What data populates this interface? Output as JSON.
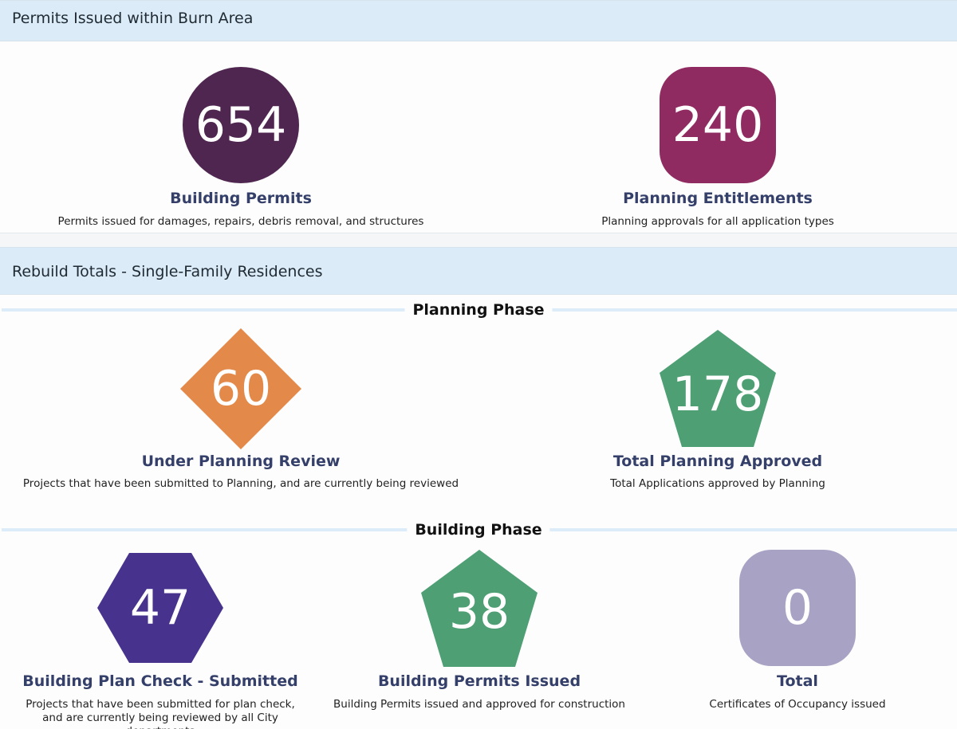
{
  "sections": {
    "permits_header": "Permits Issued within Burn Area",
    "rebuild_header": "Rebuild Totals - Single-Family Residences",
    "planning_phase": "Planning Phase",
    "building_phase": "Building Phase"
  },
  "permits": {
    "building": {
      "value": "654",
      "title": "Building Permits",
      "desc": "Permits issued for damages, repairs, debris removal, and structures",
      "shape": "circle",
      "color": "#4f2650"
    },
    "planning": {
      "value": "240",
      "title": "Planning Entitlements",
      "desc": "Planning approvals for all application types",
      "shape": "rounded-square",
      "color": "#902b62"
    }
  },
  "planning_phase": {
    "under_review": {
      "value": "60",
      "title": "Under Planning Review",
      "desc": "Projects that have been submitted to Planning, and are currently being reviewed",
      "shape": "diamond",
      "color": "#e38a4a"
    },
    "approved": {
      "value": "178",
      "title": "Total Planning Approved",
      "desc": "Total Applications approved by Planning",
      "shape": "pentagon",
      "color": "#4e9f73"
    }
  },
  "building_phase": {
    "plan_check": {
      "value": "47",
      "title": "Building Plan Check - Submitted",
      "desc": "Projects that have been submitted for plan check, and are currently being reviewed by all City departments",
      "shape": "hexagon",
      "color": "#47338e"
    },
    "permits_issued": {
      "value": "38",
      "title": "Building Permits Issued",
      "desc": "Building Permits issued and approved for construction",
      "shape": "pentagon",
      "color": "#4e9f73"
    },
    "total": {
      "value": "0",
      "title": "Total",
      "desc": "Certificates of Occupancy issued",
      "shape": "rounded-square",
      "color": "#a8a2c4"
    }
  }
}
